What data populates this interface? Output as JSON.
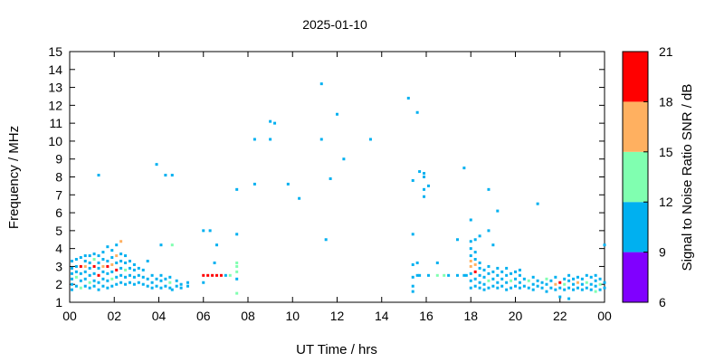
{
  "chart_data": {
    "type": "heatmap",
    "title": "2025-01-10",
    "xlabel": "UT Time / hrs",
    "ylabel": "Frequency / MHz",
    "colorbar_label": "Signal to Noise Ratio SNR / dB",
    "xlim": [
      0,
      24
    ],
    "ylim": [
      1,
      15
    ],
    "x_tick_labels": [
      "00",
      "02",
      "04",
      "06",
      "08",
      "10",
      "12",
      "14",
      "16",
      "18",
      "20",
      "22",
      "00"
    ],
    "y_tick_labels": [
      "1",
      "2",
      "3",
      "4",
      "5",
      "6",
      "7",
      "8",
      "9",
      "10",
      "11",
      "12",
      "13",
      "14",
      "15"
    ],
    "colorbar": {
      "range": [
        6,
        21
      ],
      "tick_labels": [
        "6",
        "9",
        "12",
        "15",
        "18",
        "21"
      ],
      "bands": [
        {
          "from": 6,
          "to": 9,
          "color": "#8000ff"
        },
        {
          "from": 9,
          "to": 12,
          "color": "#00b0f0"
        },
        {
          "from": 12,
          "to": 15,
          "color": "#80ffb0"
        },
        {
          "from": 15,
          "to": 18,
          "color": "#ffb060"
        },
        {
          "from": 18,
          "to": 21,
          "color": "#ff0000"
        }
      ]
    },
    "points": [
      [
        0.1,
        2.0,
        10
      ],
      [
        0.1,
        2.3,
        10
      ],
      [
        0.1,
        2.6,
        10
      ],
      [
        0.1,
        2.9,
        10
      ],
      [
        0.1,
        3.3,
        10
      ],
      [
        0.1,
        1.7,
        10
      ],
      [
        0.3,
        1.9,
        10
      ],
      [
        0.3,
        2.4,
        13
      ],
      [
        0.3,
        2.7,
        10
      ],
      [
        0.3,
        3.0,
        10
      ],
      [
        0.3,
        3.4,
        10
      ],
      [
        0.5,
        1.8,
        13
      ],
      [
        0.5,
        2.2,
        10
      ],
      [
        0.5,
        2.6,
        10
      ],
      [
        0.5,
        3.0,
        19
      ],
      [
        0.5,
        3.5,
        10
      ],
      [
        0.7,
        1.9,
        10
      ],
      [
        0.7,
        2.3,
        10
      ],
      [
        0.7,
        2.7,
        10
      ],
      [
        0.7,
        3.0,
        16
      ],
      [
        0.7,
        3.3,
        10
      ],
      [
        0.7,
        3.6,
        10
      ],
      [
        0.9,
        1.8,
        10
      ],
      [
        0.9,
        2.1,
        13
      ],
      [
        0.9,
        2.5,
        10
      ],
      [
        0.9,
        2.9,
        10
      ],
      [
        0.9,
        3.2,
        10
      ],
      [
        0.9,
        3.6,
        10
      ],
      [
        1.1,
        1.9,
        10
      ],
      [
        1.1,
        2.2,
        10
      ],
      [
        1.1,
        2.6,
        10
      ],
      [
        1.1,
        3.0,
        19
      ],
      [
        1.1,
        3.4,
        13
      ],
      [
        1.1,
        3.7,
        10
      ],
      [
        1.3,
        1.7,
        10
      ],
      [
        1.3,
        2.1,
        10
      ],
      [
        1.3,
        2.5,
        19
      ],
      [
        1.3,
        2.9,
        10
      ],
      [
        1.3,
        3.2,
        10
      ],
      [
        1.3,
        3.6,
        10
      ],
      [
        1.3,
        8.1,
        10
      ],
      [
        1.5,
        1.9,
        10
      ],
      [
        1.5,
        2.3,
        10
      ],
      [
        1.5,
        2.7,
        10
      ],
      [
        1.5,
        3.0,
        16
      ],
      [
        1.5,
        3.4,
        10
      ],
      [
        1.5,
        3.8,
        10
      ],
      [
        1.7,
        1.8,
        10
      ],
      [
        1.7,
        2.2,
        10
      ],
      [
        1.7,
        2.6,
        10
      ],
      [
        1.7,
        3.0,
        19
      ],
      [
        1.7,
        3.3,
        10
      ],
      [
        1.7,
        4.1,
        10
      ],
      [
        1.9,
        1.9,
        10
      ],
      [
        1.9,
        2.3,
        13
      ],
      [
        1.9,
        2.7,
        10
      ],
      [
        1.9,
        3.1,
        16
      ],
      [
        1.9,
        3.5,
        10
      ],
      [
        1.9,
        3.9,
        10
      ],
      [
        2.1,
        2.0,
        10
      ],
      [
        2.1,
        2.4,
        10
      ],
      [
        2.1,
        2.8,
        19
      ],
      [
        2.1,
        3.2,
        10
      ],
      [
        2.1,
        3.6,
        16
      ],
      [
        2.1,
        4.2,
        10
      ],
      [
        2.3,
        2.1,
        10
      ],
      [
        2.3,
        2.5,
        10
      ],
      [
        2.3,
        2.9,
        10
      ],
      [
        2.3,
        3.3,
        10
      ],
      [
        2.3,
        3.7,
        10
      ],
      [
        2.3,
        4.4,
        16
      ],
      [
        2.5,
        2.0,
        10
      ],
      [
        2.5,
        2.4,
        10
      ],
      [
        2.5,
        2.8,
        13
      ],
      [
        2.5,
        3.2,
        10
      ],
      [
        2.5,
        3.6,
        10
      ],
      [
        2.7,
        2.1,
        10
      ],
      [
        2.7,
        2.5,
        10
      ],
      [
        2.7,
        2.9,
        10
      ],
      [
        2.7,
        3.3,
        10
      ],
      [
        2.9,
        2.0,
        10
      ],
      [
        2.9,
        2.4,
        10
      ],
      [
        2.9,
        2.8,
        10
      ],
      [
        2.9,
        3.1,
        10
      ],
      [
        3.1,
        2.1,
        10
      ],
      [
        3.1,
        2.5,
        10
      ],
      [
        3.1,
        2.9,
        10
      ],
      [
        3.3,
        2.0,
        10
      ],
      [
        3.3,
        2.4,
        10
      ],
      [
        3.3,
        2.8,
        10
      ],
      [
        3.5,
        1.9,
        10
      ],
      [
        3.5,
        2.3,
        10
      ],
      [
        3.5,
        3.3,
        10
      ],
      [
        3.7,
        1.8,
        10
      ],
      [
        3.7,
        2.1,
        10
      ],
      [
        3.7,
        2.5,
        10
      ],
      [
        3.9,
        1.9,
        10
      ],
      [
        3.9,
        2.3,
        10
      ],
      [
        3.9,
        8.7,
        10
      ],
      [
        4.1,
        1.8,
        10
      ],
      [
        4.1,
        2.2,
        10
      ],
      [
        4.1,
        2.5,
        10
      ],
      [
        4.1,
        4.2,
        10
      ],
      [
        4.3,
        1.9,
        10
      ],
      [
        4.3,
        2.3,
        10
      ],
      [
        4.3,
        8.1,
        10
      ],
      [
        4.5,
        1.8,
        10
      ],
      [
        4.5,
        2.1,
        13
      ],
      [
        4.5,
        2.4,
        10
      ],
      [
        4.6,
        1.7,
        10
      ],
      [
        4.6,
        4.2,
        13
      ],
      [
        4.6,
        8.1,
        10
      ],
      [
        4.8,
        1.9,
        10
      ],
      [
        4.8,
        2.2,
        10
      ],
      [
        5.0,
        1.8,
        10
      ],
      [
        5.0,
        2.0,
        10
      ],
      [
        5.3,
        1.9,
        10
      ],
      [
        5.3,
        2.1,
        10
      ],
      [
        6.0,
        2.1,
        10
      ],
      [
        6.0,
        2.5,
        19
      ],
      [
        6.0,
        5.0,
        10
      ],
      [
        6.2,
        2.5,
        19
      ],
      [
        6.3,
        5.0,
        10
      ],
      [
        6.4,
        2.5,
        19
      ],
      [
        6.5,
        3.2,
        10
      ],
      [
        6.6,
        2.5,
        19
      ],
      [
        6.6,
        4.2,
        10
      ],
      [
        6.8,
        2.5,
        19
      ],
      [
        7.0,
        2.5,
        10
      ],
      [
        7.2,
        2.5,
        13
      ],
      [
        7.5,
        1.5,
        13
      ],
      [
        7.5,
        2.3,
        10
      ],
      [
        7.5,
        2.7,
        13
      ],
      [
        7.5,
        3.0,
        13
      ],
      [
        7.5,
        3.2,
        13
      ],
      [
        7.5,
        4.8,
        10
      ],
      [
        7.5,
        7.3,
        10
      ],
      [
        8.3,
        7.6,
        10
      ],
      [
        8.3,
        10.1,
        10
      ],
      [
        9.0,
        10.1,
        10
      ],
      [
        9.0,
        11.1,
        10
      ],
      [
        9.2,
        11.0,
        10
      ],
      [
        9.8,
        7.6,
        10
      ],
      [
        10.3,
        6.8,
        10
      ],
      [
        11.3,
        10.1,
        10
      ],
      [
        11.3,
        13.2,
        10
      ],
      [
        11.5,
        4.5,
        10
      ],
      [
        11.7,
        7.9,
        10
      ],
      [
        12.0,
        11.5,
        10
      ],
      [
        12.3,
        9.0,
        10
      ],
      [
        13.5,
        10.1,
        10
      ],
      [
        15.2,
        12.4,
        10
      ],
      [
        15.4,
        1.6,
        10
      ],
      [
        15.4,
        1.9,
        10
      ],
      [
        15.4,
        2.4,
        10
      ],
      [
        15.4,
        3.1,
        10
      ],
      [
        15.4,
        4.8,
        10
      ],
      [
        15.4,
        7.8,
        10
      ],
      [
        15.6,
        2.5,
        10
      ],
      [
        15.6,
        3.2,
        10
      ],
      [
        15.6,
        11.6,
        10
      ],
      [
        15.7,
        8.3,
        10
      ],
      [
        15.7,
        2.5,
        10
      ],
      [
        15.9,
        7.3,
        10
      ],
      [
        15.9,
        8.0,
        10
      ],
      [
        15.9,
        6.9,
        10
      ],
      [
        15.9,
        8.2,
        10
      ],
      [
        16.1,
        2.5,
        10
      ],
      [
        16.1,
        7.5,
        10
      ],
      [
        16.5,
        2.5,
        13
      ],
      [
        16.5,
        3.2,
        10
      ],
      [
        16.8,
        2.5,
        13
      ],
      [
        17.0,
        2.5,
        10
      ],
      [
        17.4,
        2.5,
        10
      ],
      [
        17.4,
        4.5,
        10
      ],
      [
        17.7,
        2.5,
        10
      ],
      [
        17.7,
        8.5,
        10
      ],
      [
        17.8,
        2.5,
        10
      ],
      [
        18.0,
        1.8,
        10
      ],
      [
        18.0,
        2.2,
        10
      ],
      [
        18.0,
        2.6,
        10
      ],
      [
        18.0,
        3.0,
        16
      ],
      [
        18.0,
        3.3,
        16
      ],
      [
        18.0,
        3.6,
        10
      ],
      [
        18.0,
        4.0,
        10
      ],
      [
        18.0,
        4.4,
        10
      ],
      [
        18.0,
        5.6,
        10
      ],
      [
        18.2,
        1.9,
        10
      ],
      [
        18.2,
        2.3,
        10
      ],
      [
        18.2,
        2.7,
        19
      ],
      [
        18.2,
        3.1,
        16
      ],
      [
        18.2,
        3.4,
        10
      ],
      [
        18.2,
        3.8,
        10
      ],
      [
        18.2,
        4.5,
        10
      ],
      [
        18.4,
        1.8,
        10
      ],
      [
        18.4,
        2.1,
        10
      ],
      [
        18.4,
        2.5,
        10
      ],
      [
        18.4,
        2.9,
        10
      ],
      [
        18.4,
        3.2,
        10
      ],
      [
        18.4,
        4.7,
        10
      ],
      [
        18.6,
        1.7,
        10
      ],
      [
        18.6,
        2.0,
        10
      ],
      [
        18.6,
        2.4,
        10
      ],
      [
        18.6,
        2.8,
        10
      ],
      [
        18.8,
        1.8,
        10
      ],
      [
        18.8,
        2.2,
        13
      ],
      [
        18.8,
        2.6,
        10
      ],
      [
        18.8,
        3.0,
        10
      ],
      [
        18.8,
        5.0,
        10
      ],
      [
        18.8,
        7.3,
        10
      ],
      [
        19.0,
        1.9,
        10
      ],
      [
        19.0,
        2.3,
        10
      ],
      [
        19.0,
        2.7,
        10
      ],
      [
        19.0,
        4.2,
        10
      ],
      [
        19.2,
        1.8,
        10
      ],
      [
        19.2,
        2.1,
        10
      ],
      [
        19.2,
        2.5,
        10
      ],
      [
        19.2,
        2.9,
        10
      ],
      [
        19.2,
        6.1,
        10
      ],
      [
        19.4,
        1.9,
        10
      ],
      [
        19.4,
        2.3,
        10
      ],
      [
        19.4,
        2.7,
        10
      ],
      [
        19.6,
        1.7,
        10
      ],
      [
        19.6,
        2.1,
        10
      ],
      [
        19.6,
        2.5,
        10
      ],
      [
        19.6,
        2.9,
        10
      ],
      [
        19.8,
        1.8,
        10
      ],
      [
        19.8,
        2.2,
        13
      ],
      [
        19.8,
        2.6,
        10
      ],
      [
        20.0,
        1.9,
        10
      ],
      [
        20.0,
        2.3,
        10
      ],
      [
        20.0,
        2.7,
        10
      ],
      [
        20.2,
        1.8,
        10
      ],
      [
        20.2,
        2.1,
        10
      ],
      [
        20.2,
        2.5,
        10
      ],
      [
        20.2,
        2.8,
        10
      ],
      [
        20.4,
        1.9,
        10
      ],
      [
        20.4,
        2.3,
        10
      ],
      [
        20.6,
        1.8,
        10
      ],
      [
        20.6,
        2.2,
        13
      ],
      [
        20.8,
        1.7,
        10
      ],
      [
        20.8,
        2.0,
        10
      ],
      [
        20.8,
        2.4,
        10
      ],
      [
        21.0,
        1.9,
        10
      ],
      [
        21.0,
        2.2,
        10
      ],
      [
        21.0,
        6.5,
        10
      ],
      [
        21.2,
        1.8,
        10
      ],
      [
        21.2,
        2.1,
        10
      ],
      [
        21.4,
        1.6,
        10
      ],
      [
        21.4,
        2.0,
        10
      ],
      [
        21.4,
        2.3,
        13
      ],
      [
        21.6,
        1.8,
        10
      ],
      [
        21.6,
        2.2,
        10
      ],
      [
        21.8,
        1.7,
        10
      ],
      [
        21.8,
        2.0,
        16
      ],
      [
        21.8,
        2.4,
        10
      ],
      [
        22.0,
        1.8,
        10
      ],
      [
        22.0,
        2.1,
        19
      ],
      [
        22.0,
        1.3,
        10
      ],
      [
        22.2,
        1.7,
        10
      ],
      [
        22.2,
        2.0,
        13
      ],
      [
        22.2,
        2.3,
        10
      ],
      [
        22.4,
        1.8,
        10
      ],
      [
        22.4,
        2.2,
        10
      ],
      [
        22.4,
        2.5,
        10
      ],
      [
        22.4,
        1.2,
        10
      ],
      [
        22.6,
        1.7,
        10
      ],
      [
        22.6,
        2.0,
        10
      ],
      [
        22.6,
        2.3,
        10
      ],
      [
        22.8,
        1.8,
        10
      ],
      [
        22.8,
        2.1,
        16
      ],
      [
        22.8,
        2.4,
        10
      ],
      [
        23.0,
        1.7,
        10
      ],
      [
        23.0,
        2.0,
        10
      ],
      [
        23.0,
        2.3,
        10
      ],
      [
        23.2,
        1.8,
        10
      ],
      [
        23.2,
        2.1,
        13
      ],
      [
        23.2,
        2.5,
        10
      ],
      [
        23.4,
        1.7,
        10
      ],
      [
        23.4,
        2.0,
        10
      ],
      [
        23.4,
        2.4,
        10
      ],
      [
        23.6,
        1.6,
        13
      ],
      [
        23.6,
        1.9,
        10
      ],
      [
        23.6,
        2.2,
        10
      ],
      [
        23.6,
        2.5,
        10
      ],
      [
        23.8,
        1.7,
        10
      ],
      [
        23.8,
        2.0,
        13
      ],
      [
        23.8,
        2.3,
        10
      ],
      [
        24.0,
        1.8,
        10
      ],
      [
        24.0,
        2.1,
        10
      ],
      [
        24.0,
        4.2,
        10
      ]
    ]
  }
}
